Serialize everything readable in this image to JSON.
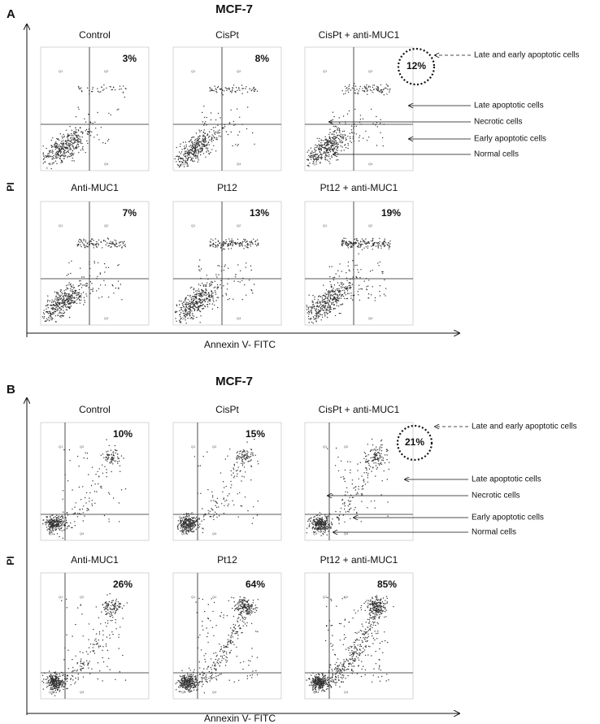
{
  "panels": [
    {
      "label": "A",
      "title": "MCF-7",
      "y_axis_label": "PI",
      "x_axis_label": "Annexin V- FITC",
      "plots": [
        {
          "title": "Control",
          "percent": "3%"
        },
        {
          "title": "CisPt",
          "percent": "8%"
        },
        {
          "title": "CisPt + anti-MUC1",
          "percent": "12%"
        },
        {
          "title": "Anti-MUC1",
          "percent": "7%"
        },
        {
          "title": "Pt12",
          "percent": "13%"
        },
        {
          "title": "Pt12 + anti-MUC1",
          "percent": "19%"
        }
      ],
      "annotations": [
        "Late and early apoptotic cells",
        "Late apoptotic cells",
        "Necrotic cells",
        "Early apoptotic cells",
        "Normal cells"
      ]
    },
    {
      "label": "B",
      "title": "MCF-7",
      "y_axis_label": "PI",
      "x_axis_label": "Annexin V- FITC",
      "plots": [
        {
          "title": "Control",
          "percent": "10%"
        },
        {
          "title": "CisPt",
          "percent": "15%"
        },
        {
          "title": "CisPt + anti-MUC1",
          "percent": "21%"
        },
        {
          "title": "Anti-MUC1",
          "percent": "26%"
        },
        {
          "title": "Pt12",
          "percent": "64%"
        },
        {
          "title": "Pt12 + anti-MUC1",
          "percent": "85%"
        }
      ],
      "annotations": [
        "Late and early apoptotic cells",
        "Late apoptotic cells",
        "Necrotic cells",
        "Early apoptotic cells",
        "Normal cells"
      ]
    }
  ],
  "quadrant_labels": [
    "Q1",
    "Q2",
    "Q3",
    "Q4"
  ]
}
